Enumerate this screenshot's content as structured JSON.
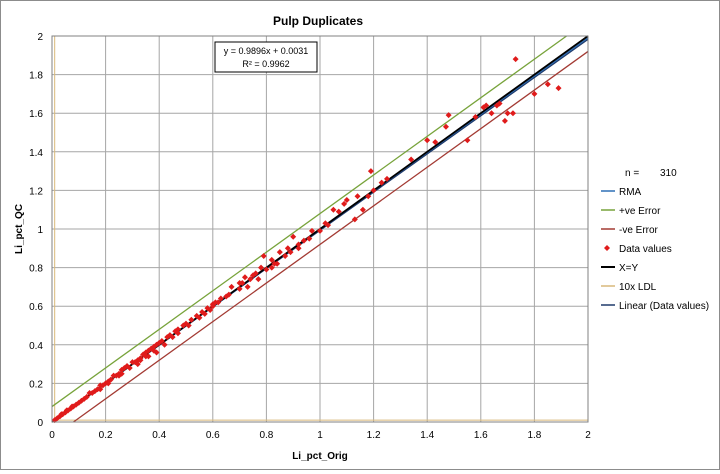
{
  "chart_data": {
    "type": "scatter",
    "title": "Pulp Duplicates",
    "xlabel": "Li_pct_Orig",
    "ylabel": "Li_pct_QC",
    "xlim": [
      0,
      2
    ],
    "ylim": [
      0,
      2
    ],
    "x_ticks": [
      "0",
      "0.2",
      "0.4",
      "0.6",
      "0.8",
      "1",
      "1.2",
      "1.4",
      "1.6",
      "1.8",
      "2"
    ],
    "y_ticks": [
      "0",
      "0.2",
      "0.4",
      "0.6",
      "0.8",
      "1",
      "1.2",
      "1.4",
      "1.6",
      "1.8",
      "2"
    ],
    "grid": true,
    "trendline_equation": "y = 0.9896x + 0.0031",
    "r_squared": "R² = 0.9962",
    "n_label": "n =",
    "n_value": "310",
    "legend_position": "right",
    "legend": [
      {
        "label": "RMA",
        "kind": "line",
        "color": "#2e6fb5"
      },
      {
        "label": "+ve Error",
        "kind": "line",
        "color": "#77a33a"
      },
      {
        "label": "-ve Error",
        "kind": "line",
        "color": "#a33a33"
      },
      {
        "label": "Data values",
        "kind": "marker",
        "color": "#e01b1b"
      },
      {
        "label": "X=Y",
        "kind": "line",
        "color": "#000000"
      },
      {
        "label": "10x LDL",
        "kind": "line",
        "color": "#d9b97a"
      },
      {
        "label": "Linear (Data values)",
        "kind": "line",
        "color": "#1f3a6b"
      }
    ],
    "lines": {
      "rma": {
        "slope": 0.995,
        "intercept": 0.0
      },
      "plus_error": {
        "slope": 1.0,
        "intercept": 0.08
      },
      "minus_error": {
        "slope": 1.0,
        "intercept": -0.08
      },
      "x_equals_y": {
        "slope": 1.0,
        "intercept": 0.0
      },
      "linear_fit": {
        "slope": 0.9896,
        "intercept": 0.0031
      },
      "ldl_10x": 0.01
    },
    "series": [
      {
        "name": "Data values",
        "color": "#e01b1b",
        "points": [
          [
            0.01,
            0.01
          ],
          [
            0.02,
            0.02
          ],
          [
            0.03,
            0.03
          ],
          [
            0.035,
            0.04
          ],
          [
            0.04,
            0.04
          ],
          [
            0.05,
            0.05
          ],
          [
            0.055,
            0.06
          ],
          [
            0.06,
            0.06
          ],
          [
            0.07,
            0.07
          ],
          [
            0.075,
            0.08
          ],
          [
            0.08,
            0.08
          ],
          [
            0.09,
            0.09
          ],
          [
            0.1,
            0.1
          ],
          [
            0.11,
            0.11
          ],
          [
            0.12,
            0.12
          ],
          [
            0.13,
            0.13
          ],
          [
            0.14,
            0.15
          ],
          [
            0.15,
            0.15
          ],
          [
            0.16,
            0.16
          ],
          [
            0.17,
            0.17
          ],
          [
            0.18,
            0.19
          ],
          [
            0.19,
            0.19
          ],
          [
            0.2,
            0.2
          ],
          [
            0.21,
            0.21
          ],
          [
            0.22,
            0.22
          ],
          [
            0.23,
            0.24
          ],
          [
            0.24,
            0.24
          ],
          [
            0.25,
            0.25
          ],
          [
            0.26,
            0.27
          ],
          [
            0.27,
            0.28
          ],
          [
            0.28,
            0.29
          ],
          [
            0.3,
            0.31
          ],
          [
            0.31,
            0.31
          ],
          [
            0.32,
            0.32
          ],
          [
            0.33,
            0.33
          ],
          [
            0.34,
            0.35
          ],
          [
            0.35,
            0.36
          ],
          [
            0.36,
            0.37
          ],
          [
            0.37,
            0.38
          ],
          [
            0.38,
            0.39
          ],
          [
            0.39,
            0.4
          ],
          [
            0.4,
            0.41
          ],
          [
            0.41,
            0.42
          ],
          [
            0.43,
            0.44
          ],
          [
            0.44,
            0.45
          ],
          [
            0.46,
            0.47
          ],
          [
            0.47,
            0.48
          ],
          [
            0.49,
            0.5
          ],
          [
            0.5,
            0.51
          ],
          [
            0.52,
            0.53
          ],
          [
            0.54,
            0.55
          ],
          [
            0.56,
            0.57
          ],
          [
            0.58,
            0.59
          ],
          [
            0.6,
            0.61
          ],
          [
            0.61,
            0.62
          ],
          [
            0.62,
            0.62
          ],
          [
            0.63,
            0.64
          ],
          [
            0.65,
            0.65
          ],
          [
            0.67,
            0.7
          ],
          [
            0.7,
            0.69
          ],
          [
            0.72,
            0.75
          ],
          [
            0.74,
            0.74
          ],
          [
            0.76,
            0.77
          ],
          [
            0.78,
            0.8
          ],
          [
            0.79,
            0.86
          ],
          [
            0.8,
            0.79
          ],
          [
            0.82,
            0.8
          ],
          [
            0.84,
            0.82
          ],
          [
            0.85,
            0.88
          ],
          [
            0.87,
            0.86
          ],
          [
            0.9,
            0.96
          ],
          [
            0.92,
            0.92
          ],
          [
            0.94,
            0.94
          ],
          [
            0.96,
            0.95
          ],
          [
            1.0,
            0.99
          ],
          [
            1.02,
            1.03
          ],
          [
            1.05,
            1.1
          ],
          [
            1.07,
            1.09
          ],
          [
            1.09,
            1.13
          ],
          [
            1.1,
            1.15
          ],
          [
            1.13,
            1.05
          ],
          [
            1.14,
            1.17
          ],
          [
            1.16,
            1.1
          ],
          [
            1.18,
            1.17
          ],
          [
            1.19,
            1.3
          ],
          [
            1.2,
            1.2
          ],
          [
            1.23,
            1.24
          ],
          [
            1.25,
            1.26
          ],
          [
            1.34,
            1.36
          ],
          [
            1.4,
            1.46
          ],
          [
            1.43,
            1.45
          ],
          [
            1.47,
            1.53
          ],
          [
            1.48,
            1.59
          ],
          [
            1.55,
            1.46
          ],
          [
            1.58,
            1.58
          ],
          [
            1.61,
            1.63
          ],
          [
            1.62,
            1.64
          ],
          [
            1.64,
            1.6
          ],
          [
            1.66,
            1.64
          ],
          [
            1.67,
            1.65
          ],
          [
            1.69,
            1.56
          ],
          [
            1.7,
            1.6
          ],
          [
            1.72,
            1.6
          ],
          [
            1.73,
            1.88
          ],
          [
            1.8,
            1.7
          ],
          [
            1.85,
            1.75
          ],
          [
            1.89,
            1.73
          ],
          [
            0.18,
            0.17
          ],
          [
            0.21,
            0.2
          ],
          [
            0.25,
            0.24
          ],
          [
            0.29,
            0.28
          ],
          [
            0.33,
            0.32
          ],
          [
            0.35,
            0.34
          ],
          [
            0.36,
            0.34
          ],
          [
            0.39,
            0.36
          ],
          [
            0.42,
            0.4
          ],
          [
            0.45,
            0.44
          ],
          [
            0.47,
            0.46
          ],
          [
            0.51,
            0.5
          ],
          [
            0.55,
            0.54
          ],
          [
            0.57,
            0.56
          ],
          [
            0.59,
            0.58
          ],
          [
            0.7,
            0.72
          ],
          [
            0.73,
            0.7
          ],
          [
            0.75,
            0.76
          ],
          [
            0.77,
            0.74
          ],
          [
            0.82,
            0.84
          ],
          [
            0.88,
            0.9
          ],
          [
            0.92,
            0.9
          ],
          [
            0.97,
            0.99
          ],
          [
            1.03,
            1.02
          ],
          [
            0.32,
            0.3
          ],
          [
            0.38,
            0.37
          ],
          [
            0.6,
            0.6
          ],
          [
            0.66,
            0.66
          ],
          [
            0.71,
            0.72
          ],
          [
            0.26,
            0.25
          ],
          [
            0.83,
            0.82
          ],
          [
            0.89,
            0.88
          ]
        ]
      }
    ]
  }
}
